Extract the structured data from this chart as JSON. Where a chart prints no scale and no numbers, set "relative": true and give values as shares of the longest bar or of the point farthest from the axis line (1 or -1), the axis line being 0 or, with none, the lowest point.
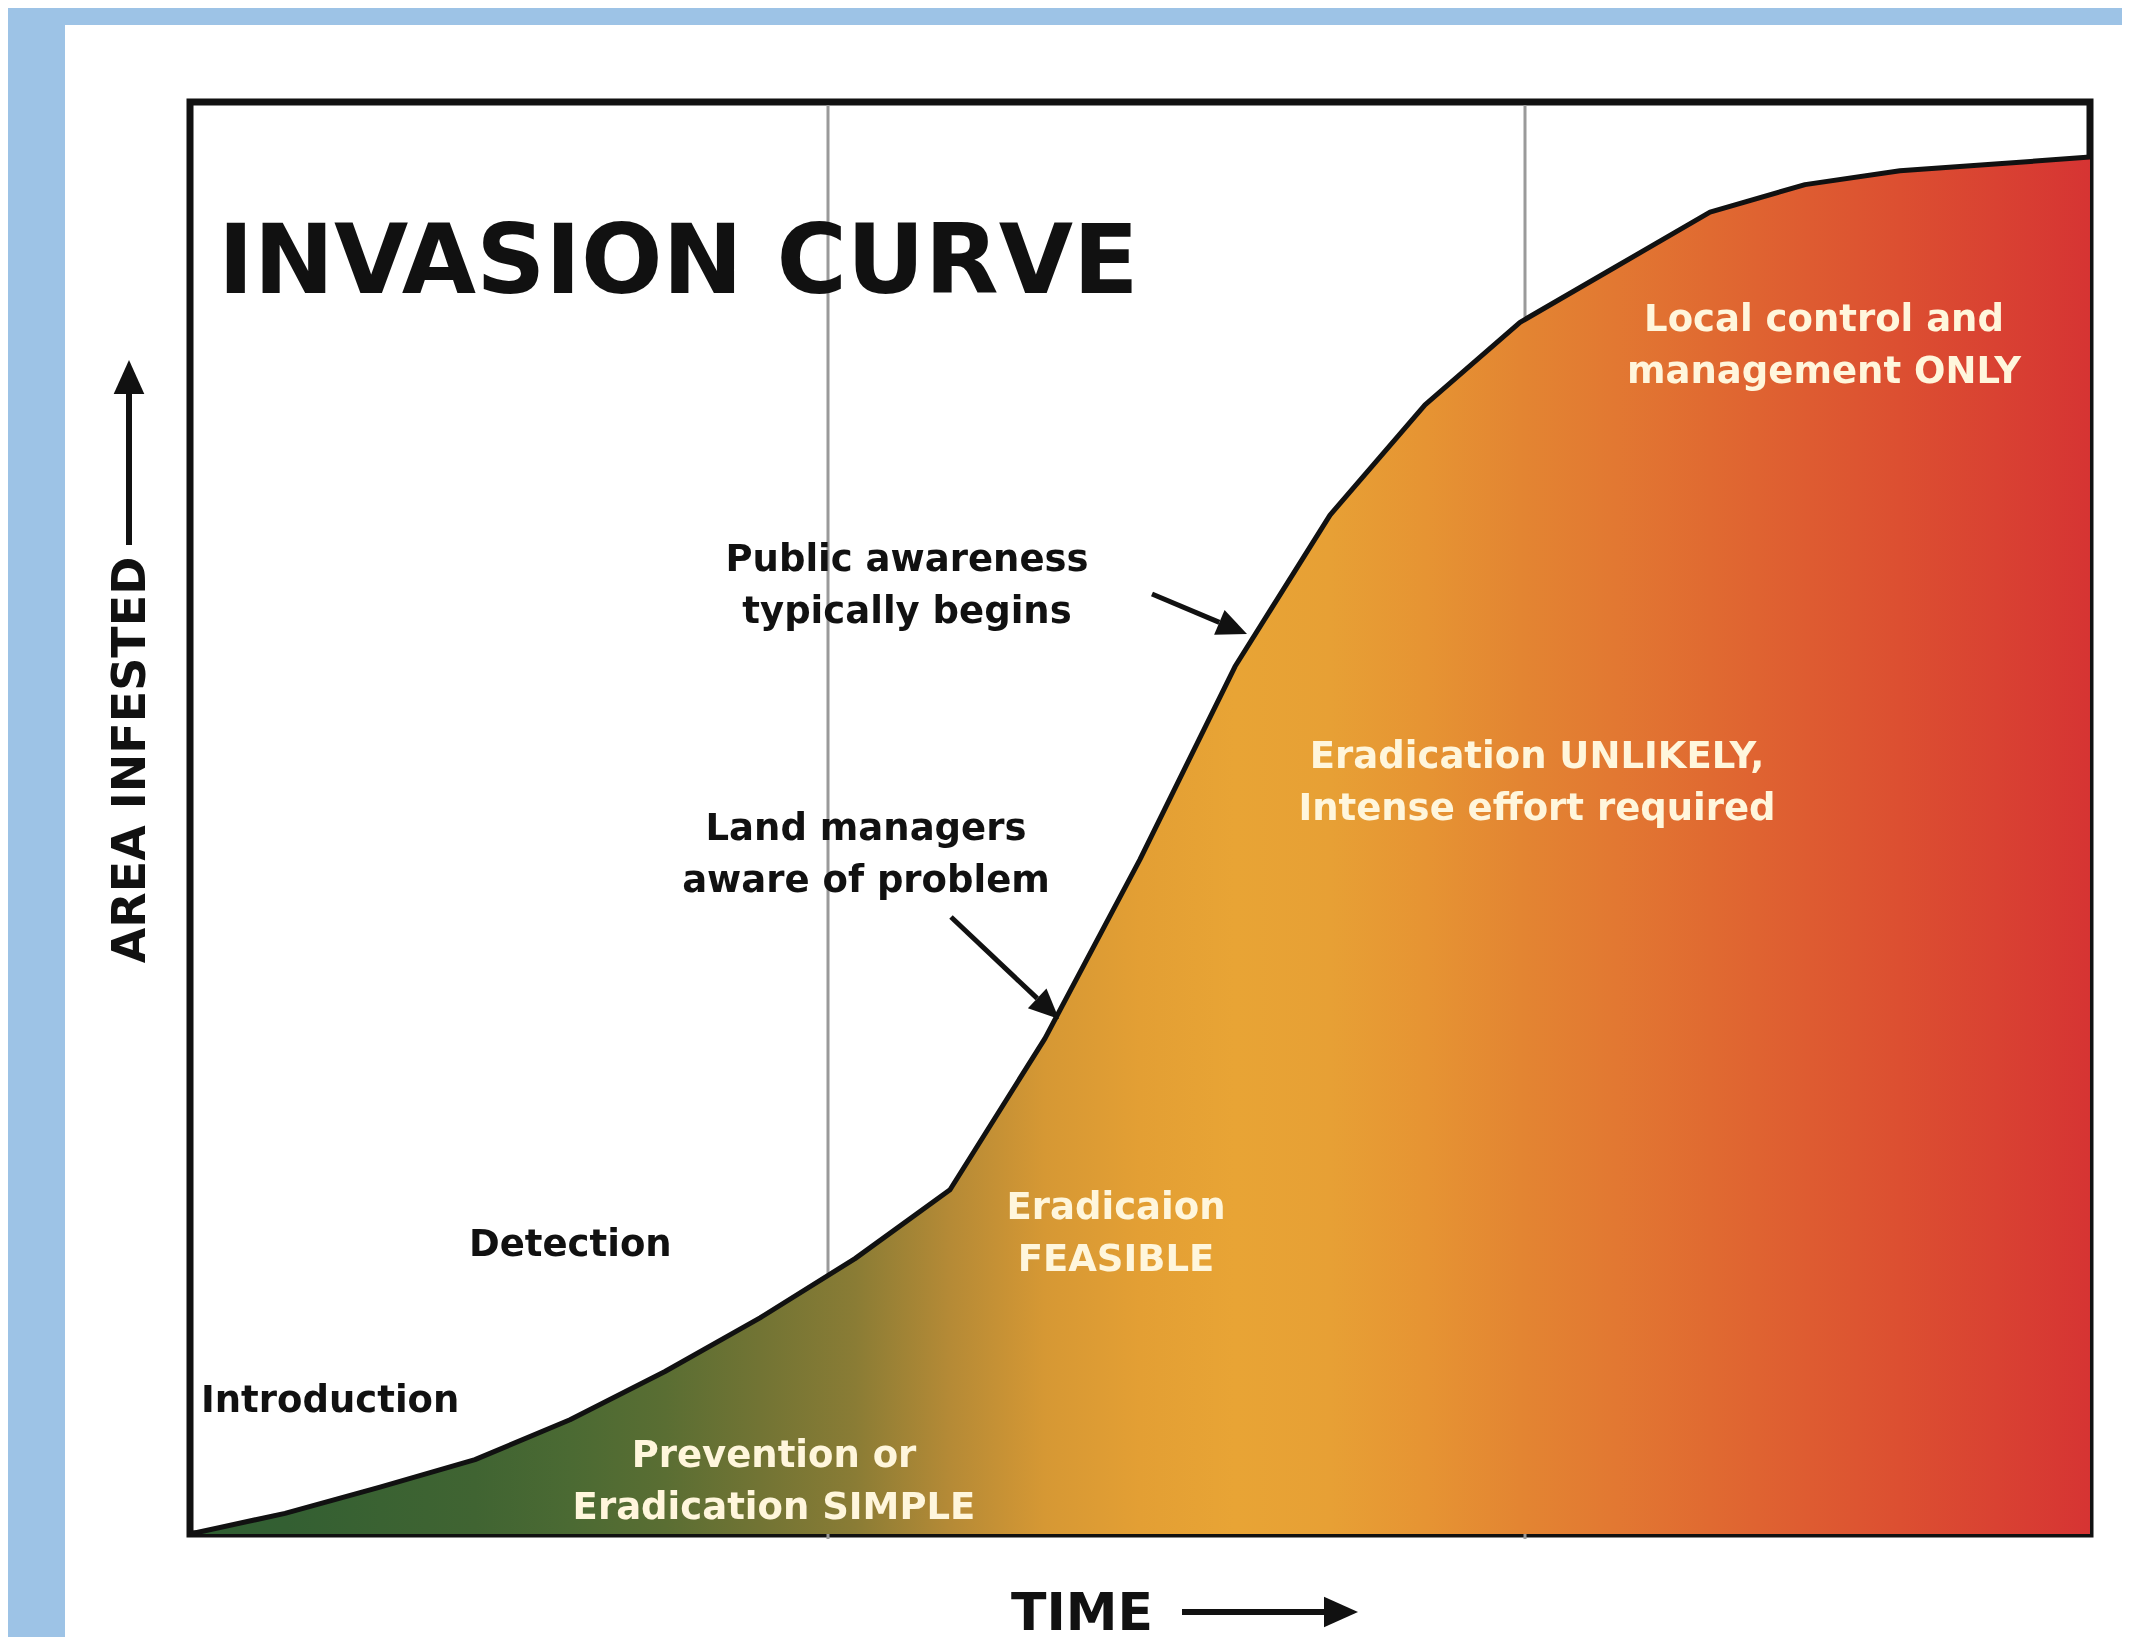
{
  "chart_data": {
    "type": "area",
    "relative": true,
    "title": "INVASION CURVE",
    "xlabel": "TIME",
    "ylabel": "AREA INFESTED",
    "categories": [
      null,
      null,
      null,
      null,
      null,
      null,
      null,
      null,
      null,
      null,
      null,
      null,
      null,
      null,
      null,
      null,
      null,
      null,
      null,
      null,
      null
    ],
    "series": [
      {
        "color": "#111111",
        "values": [
          0,
          0.015,
          0.034,
          0.054,
          0.083,
          0.118,
          0.157,
          0.2,
          0.25,
          0.36,
          0.49,
          0.63,
          0.74,
          0.82,
          0.88,
          0.92,
          0.96,
          0.98,
          0.99,
          0.995,
          1
        ],
        "colors": [
          "#2f5f32",
          "#335f32",
          "#3a6232",
          "#406432",
          "#4b6a33",
          "#5a6e33",
          "#727434",
          "#8a7c35",
          "#b58a36",
          "#d69834",
          "#e39f34",
          "#e8a435",
          "#e7a035",
          "#e69433",
          "#e38532",
          "#e27832",
          "#e06a31",
          "#de5c31",
          "#dc4f31",
          "#d94232",
          "#d63433"
        ]
      }
    ],
    "annotations": [
      "Introduction",
      "Detection",
      "Prevention or\nEradication SIMPLE",
      "Eradicaion\nFEASIBLE",
      "Land managers\naware of problem",
      "Public awareness\ntypically begins",
      "Eradication UNLIKELY,\nIntense effort required",
      "Local control and\nmanagement ONLY"
    ]
  }
}
